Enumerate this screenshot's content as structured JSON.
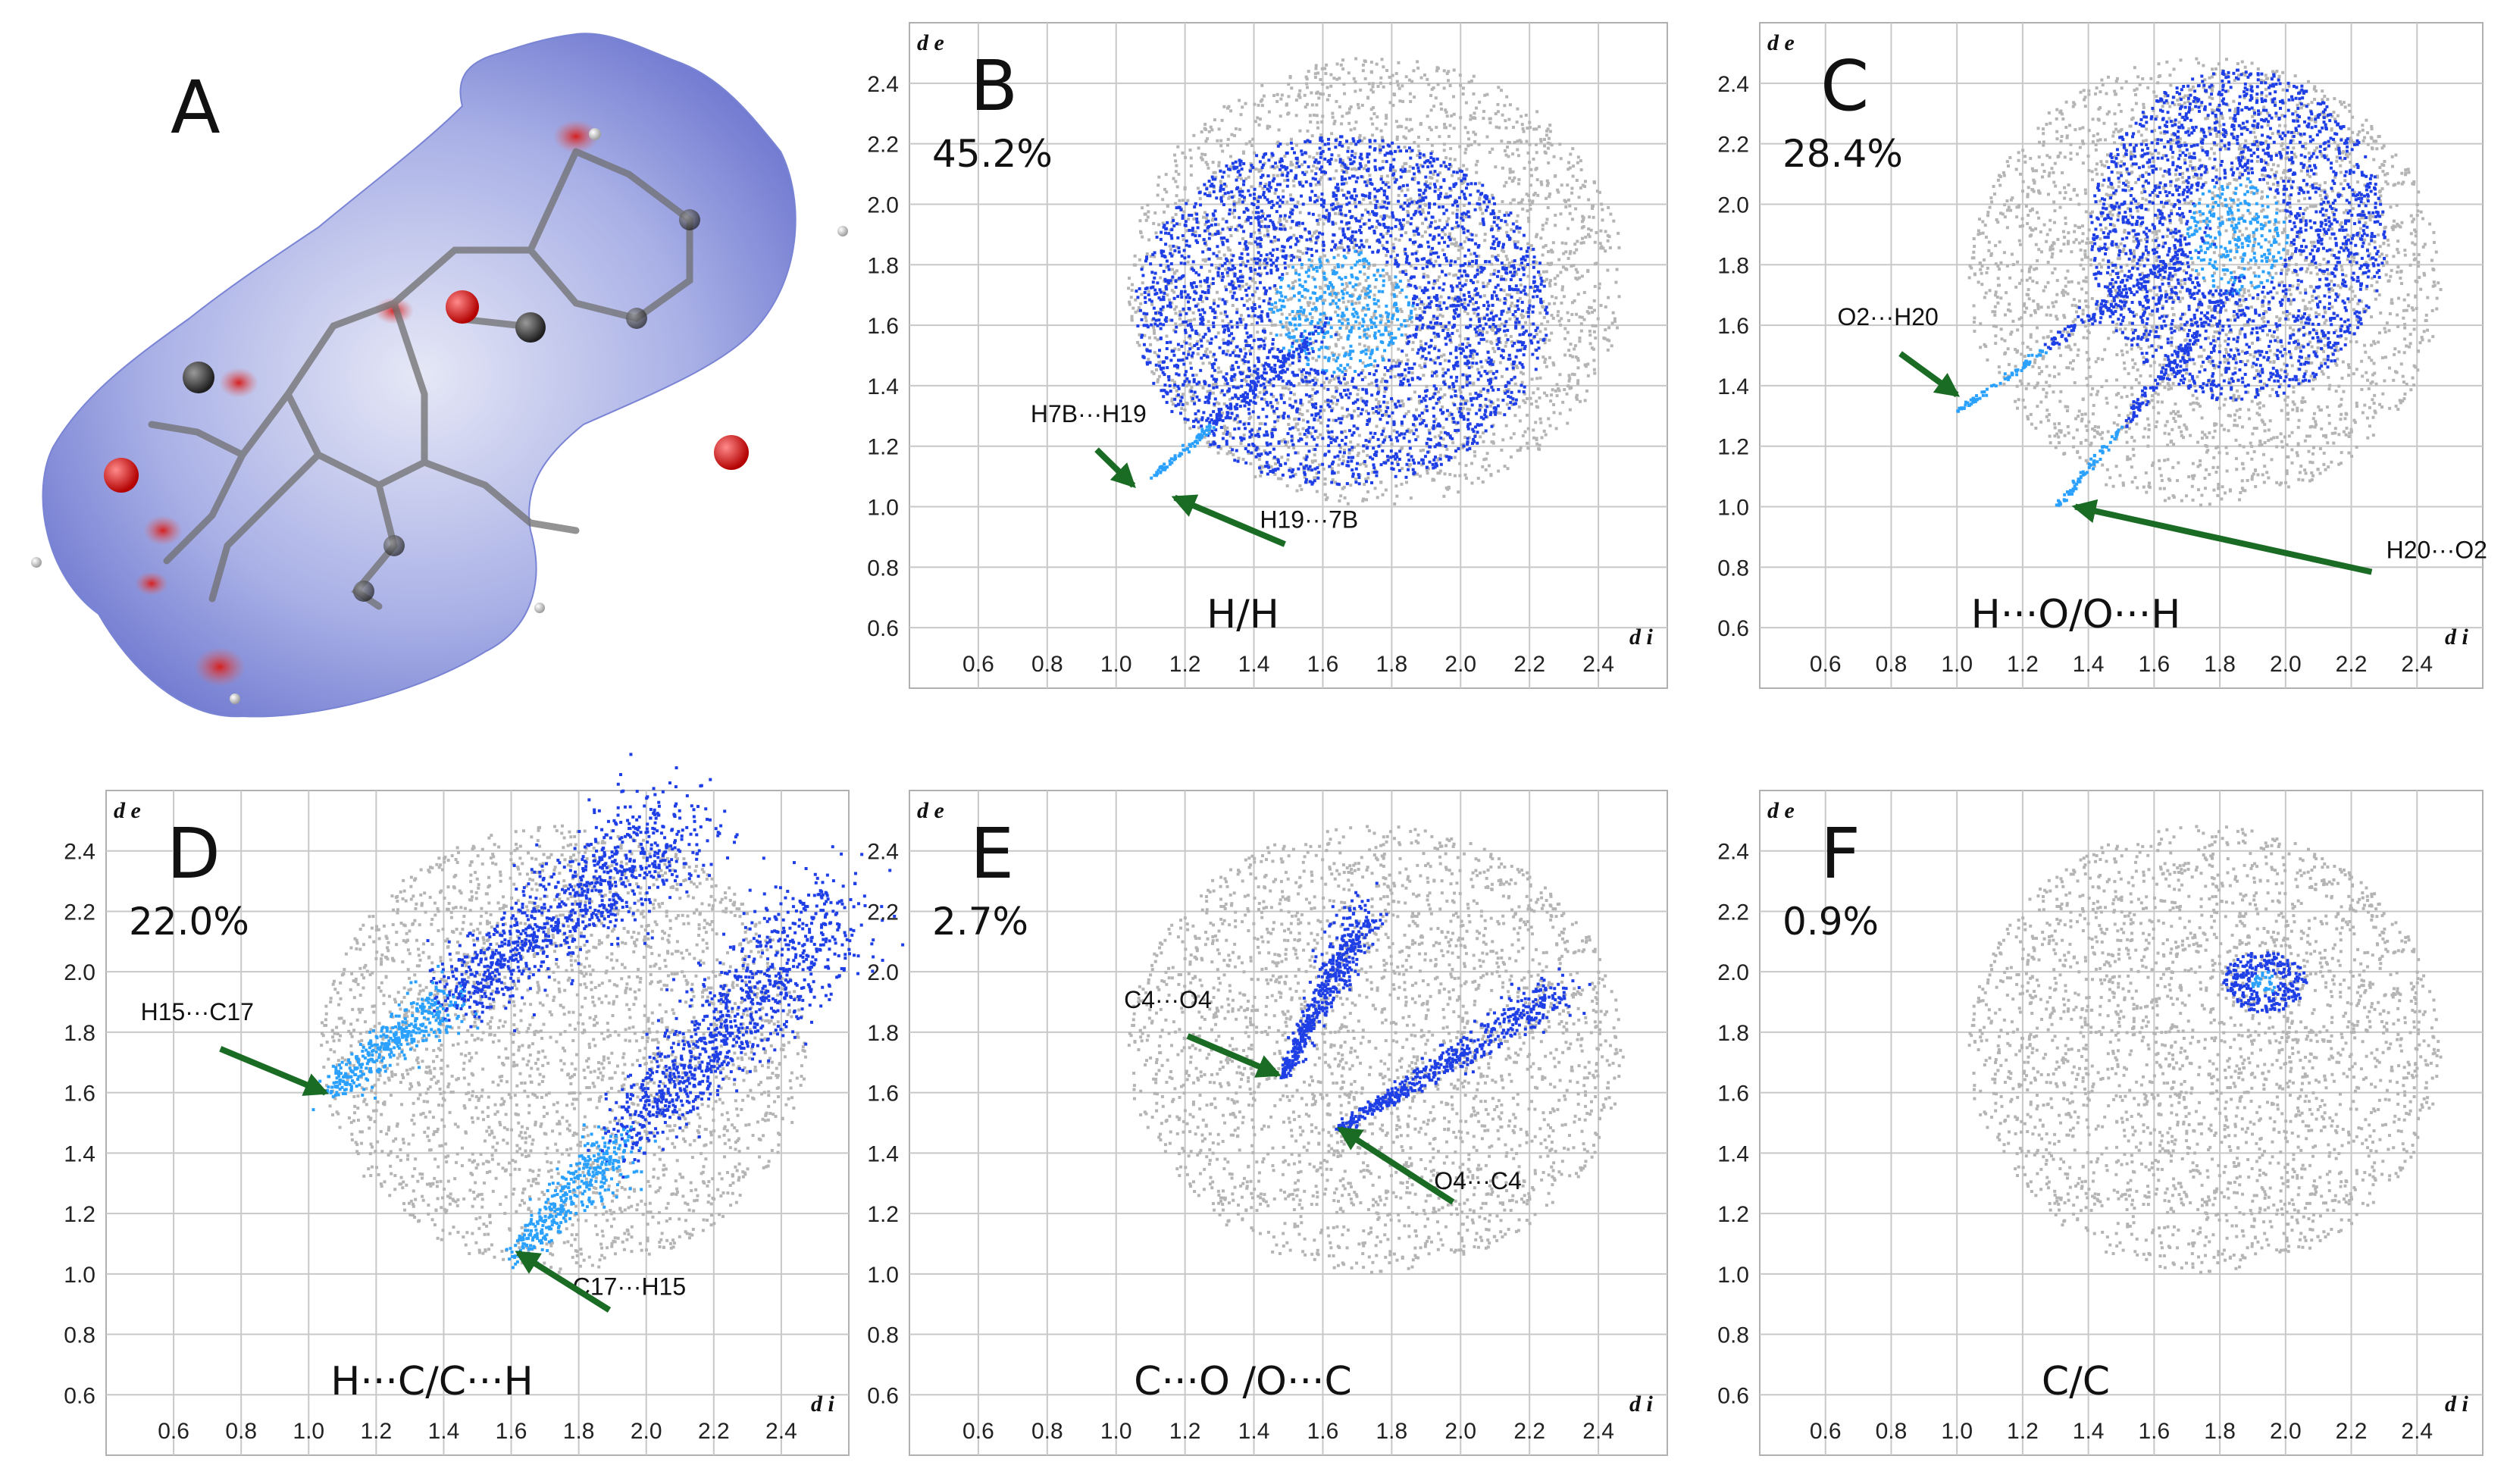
{
  "figure": {
    "panel_a": {
      "letter": "A",
      "depiction": "Hirshfeld surface mapped over dnorm with ball-and-stick molecule"
    }
  },
  "colors": {
    "grid": "#c8c8c8",
    "gray_points": "#b4b4b4",
    "blue_points": "#1f3fe6",
    "blue_dense": "#2aa0ff",
    "arrow": "#1a6b24",
    "axis_text": "#222222",
    "surface_blue": "#8b93da",
    "surface_red": "#e25555"
  },
  "chart_data": [
    {
      "panel": "B",
      "type": "scatter",
      "title": "H/H",
      "percent": "45.2%",
      "xlabel": "d i",
      "ylabel": "d e",
      "xlim": [
        0.4,
        2.6
      ],
      "ylim": [
        0.4,
        2.6
      ],
      "xticks": [
        "0.6",
        "0.8",
        "1.0",
        "1.2",
        "1.4",
        "1.6",
        "1.8",
        "2.0",
        "2.2",
        "2.4"
      ],
      "yticks": [
        "0.6",
        "0.8",
        "1.0",
        "1.2",
        "1.4",
        "1.6",
        "1.8",
        "2.0",
        "2.2",
        "2.4"
      ],
      "fingerprint_background": {
        "center": [
          1.75,
          1.75
        ],
        "radius": [
          0.72,
          0.74
        ]
      },
      "highlight_regions": [
        {
          "shape": "ellipse",
          "center": [
            1.65,
            1.65
          ],
          "radius": [
            0.6,
            0.58
          ]
        },
        {
          "shape": "line",
          "from": [
            1.1,
            1.1
          ],
          "to": [
            1.6,
            1.6
          ]
        }
      ],
      "annotations": [
        {
          "text": "H7B···H19",
          "label_at": [
            0.92,
            1.28
          ],
          "arrow_to": [
            1.05,
            1.07
          ]
        },
        {
          "text": "H19···7B",
          "label_at": [
            1.56,
            0.93
          ],
          "arrow_to": [
            1.17,
            1.03
          ]
        }
      ]
    },
    {
      "panel": "C",
      "type": "scatter",
      "title": "H···O/O···H",
      "percent": "28.4%",
      "xlabel": "d i",
      "ylabel": "d e",
      "xlim": [
        0.4,
        2.6
      ],
      "ylim": [
        0.4,
        2.6
      ],
      "xticks": [
        "0.6",
        "0.8",
        "1.0",
        "1.2",
        "1.4",
        "1.6",
        "1.8",
        "2.0",
        "2.2",
        "2.4"
      ],
      "yticks": [
        "0.6",
        "0.8",
        "1.0",
        "1.2",
        "1.4",
        "1.6",
        "1.8",
        "2.0",
        "2.2",
        "2.4"
      ],
      "fingerprint_background": {
        "center": [
          1.75,
          1.75
        ],
        "radius": [
          0.72,
          0.74
        ]
      },
      "highlight_regions": [
        {
          "shape": "ellipse",
          "center": [
            1.85,
            1.9
          ],
          "radius": [
            0.45,
            0.55
          ]
        },
        {
          "shape": "line",
          "from": [
            1.0,
            1.32
          ],
          "to": [
            1.75,
            1.9
          ]
        },
        {
          "shape": "line",
          "from": [
            1.3,
            1.0
          ],
          "to": [
            1.85,
            1.75
          ]
        }
      ],
      "annotations": [
        {
          "text": "O2···H20",
          "label_at": [
            0.79,
            1.6
          ],
          "arrow_to": [
            1.0,
            1.37
          ]
        },
        {
          "text": "H20···O2",
          "label_at": [
            2.46,
            0.83
          ],
          "arrow_to": [
            1.36,
            1.0
          ]
        }
      ]
    },
    {
      "panel": "D",
      "type": "scatter",
      "title": "H···C/C···H",
      "percent": "22.0%",
      "xlabel": "d i",
      "ylabel": "d e",
      "xlim": [
        0.4,
        2.6
      ],
      "ylim": [
        0.4,
        2.6
      ],
      "xticks": [
        "0.6",
        "0.8",
        "1.0",
        "1.2",
        "1.4",
        "1.6",
        "1.8",
        "2.0",
        "2.2",
        "2.4"
      ],
      "yticks": [
        "0.6",
        "0.8",
        "1.0",
        "1.2",
        "1.4",
        "1.6",
        "1.8",
        "2.0",
        "2.2",
        "2.4"
      ],
      "fingerprint_background": {
        "center": [
          1.75,
          1.75
        ],
        "radius": [
          0.72,
          0.74
        ]
      },
      "highlight_regions": [
        {
          "shape": "wing",
          "from": [
            1.05,
            1.6
          ],
          "to": [
            2.1,
            2.5
          ]
        },
        {
          "shape": "wing",
          "from": [
            1.6,
            1.05
          ],
          "to": [
            2.55,
            2.2
          ]
        }
      ],
      "annotations": [
        {
          "text": "H15···C17",
          "label_at": [
            0.67,
            1.84
          ],
          "arrow_to": [
            1.05,
            1.6
          ]
        },
        {
          "text": "C17···H15",
          "label_at": [
            1.95,
            0.93
          ],
          "arrow_to": [
            1.62,
            1.07
          ]
        }
      ]
    },
    {
      "panel": "E",
      "type": "scatter",
      "title": "C···O /O···C",
      "percent": "2.7%",
      "xlabel": "d i",
      "ylabel": "d e",
      "xlim": [
        0.4,
        2.6
      ],
      "ylim": [
        0.4,
        2.6
      ],
      "xticks": [
        "0.6",
        "0.8",
        "1.0",
        "1.2",
        "1.4",
        "1.6",
        "1.8",
        "2.0",
        "2.2",
        "2.4"
      ],
      "yticks": [
        "0.6",
        "0.8",
        "1.0",
        "1.2",
        "1.4",
        "1.6",
        "1.8",
        "2.0",
        "2.2",
        "2.4"
      ],
      "fingerprint_background": {
        "center": [
          1.75,
          1.75
        ],
        "radius": [
          0.72,
          0.74
        ]
      },
      "highlight_regions": [
        {
          "shape": "spike",
          "from": [
            1.48,
            1.66
          ],
          "to": [
            1.72,
            2.2
          ]
        },
        {
          "shape": "spike",
          "from": [
            1.64,
            1.48
          ],
          "to": [
            2.3,
            1.95
          ]
        }
      ],
      "annotations": [
        {
          "text": "C4···O4",
          "label_at": [
            1.15,
            1.88
          ],
          "arrow_to": [
            1.47,
            1.66
          ]
        },
        {
          "text": "O4···C4",
          "label_at": [
            2.05,
            1.28
          ],
          "arrow_to": [
            1.65,
            1.48
          ]
        }
      ]
    },
    {
      "panel": "F",
      "type": "scatter",
      "title": "C/C",
      "percent": "0.9%",
      "xlabel": "d i",
      "ylabel": "d e",
      "xlim": [
        0.4,
        2.6
      ],
      "ylim": [
        0.4,
        2.6
      ],
      "xticks": [
        "0.6",
        "0.8",
        "1.0",
        "1.2",
        "1.4",
        "1.6",
        "1.8",
        "2.0",
        "2.2",
        "2.4"
      ],
      "yticks": [
        "0.6",
        "0.8",
        "1.0",
        "1.2",
        "1.4",
        "1.6",
        "1.8",
        "2.0",
        "2.2",
        "2.4"
      ],
      "fingerprint_background": {
        "center": [
          1.75,
          1.75
        ],
        "radius": [
          0.72,
          0.74
        ]
      },
      "highlight_regions": [
        {
          "shape": "ellipse",
          "center": [
            1.93,
            1.97
          ],
          "radius": [
            0.13,
            0.1
          ]
        }
      ],
      "annotations": []
    }
  ]
}
